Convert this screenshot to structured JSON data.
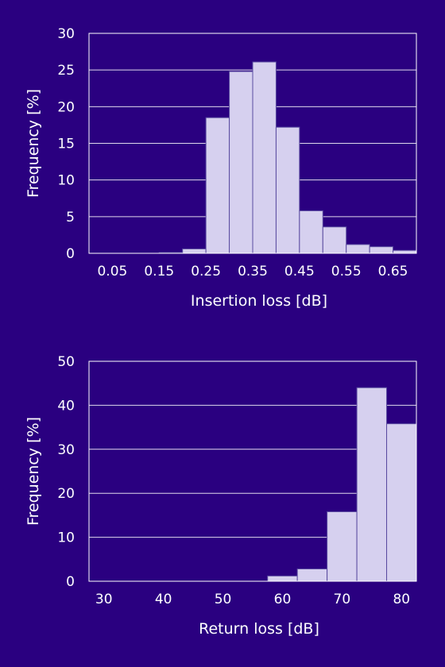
{
  "chart_data": [
    {
      "type": "bar",
      "xlabel": "Insertion loss [dB]",
      "ylabel": "Frequency [%]",
      "xlim": [
        0.0,
        0.7
      ],
      "ylim": [
        0,
        30
      ],
      "x_ticks": [
        "0.05",
        "0.15",
        "0.25",
        "0.35",
        "0.45",
        "0.55",
        "0.65"
      ],
      "y_ticks": [
        "0",
        "5",
        "10",
        "15",
        "20",
        "25",
        "30"
      ],
      "grid": true,
      "bins": [
        {
          "from": 0.0,
          "to": 0.05,
          "value": 0.0
        },
        {
          "from": 0.05,
          "to": 0.1,
          "value": 0.0
        },
        {
          "from": 0.1,
          "to": 0.15,
          "value": 0.0
        },
        {
          "from": 0.15,
          "to": 0.2,
          "value": 0.1
        },
        {
          "from": 0.2,
          "to": 0.25,
          "value": 0.6
        },
        {
          "from": 0.25,
          "to": 0.3,
          "value": 18.5
        },
        {
          "from": 0.3,
          "to": 0.35,
          "value": 24.8
        },
        {
          "from": 0.35,
          "to": 0.4,
          "value": 26.1
        },
        {
          "from": 0.4,
          "to": 0.45,
          "value": 17.2
        },
        {
          "from": 0.45,
          "to": 0.5,
          "value": 5.8
        },
        {
          "from": 0.5,
          "to": 0.55,
          "value": 3.6
        },
        {
          "from": 0.55,
          "to": 0.6,
          "value": 1.2
        },
        {
          "from": 0.6,
          "to": 0.65,
          "value": 0.9
        },
        {
          "from": 0.65,
          "to": 0.7,
          "value": 0.4
        }
      ]
    },
    {
      "type": "bar",
      "xlabel": "Return loss [dB]",
      "ylabel": "Frequency [%]",
      "xlim": [
        27.5,
        82.5
      ],
      "ylim": [
        0,
        50
      ],
      "x_ticks": [
        "30",
        "40",
        "50",
        "60",
        "70",
        "80"
      ],
      "y_ticks": [
        "0",
        "10",
        "20",
        "30",
        "40",
        "50"
      ],
      "grid": true,
      "bins": [
        {
          "from": 27.5,
          "to": 32.5,
          "value": 0.0
        },
        {
          "from": 32.5,
          "to": 37.5,
          "value": 0.0
        },
        {
          "from": 37.5,
          "to": 42.5,
          "value": 0.0
        },
        {
          "from": 42.5,
          "to": 47.5,
          "value": 0.0
        },
        {
          "from": 47.5,
          "to": 52.5,
          "value": 0.0
        },
        {
          "from": 52.5,
          "to": 57.5,
          "value": 0.0
        },
        {
          "from": 57.5,
          "to": 62.5,
          "value": 1.2
        },
        {
          "from": 62.5,
          "to": 67.5,
          "value": 2.8
        },
        {
          "from": 67.5,
          "to": 72.5,
          "value": 15.8
        },
        {
          "from": 72.5,
          "to": 77.5,
          "value": 44.0
        },
        {
          "from": 77.5,
          "to": 82.5,
          "value": 35.8
        }
      ]
    }
  ]
}
